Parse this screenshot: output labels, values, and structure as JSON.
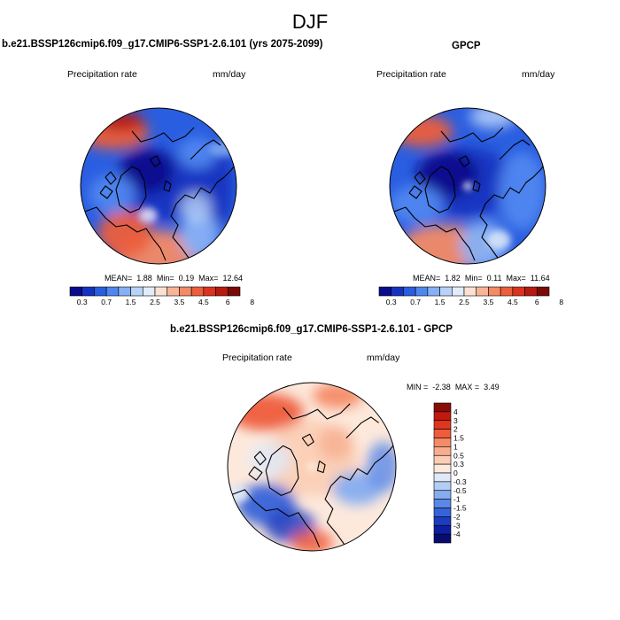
{
  "figure": {
    "title": "DJF"
  },
  "chart_data": [
    {
      "type": "heatmap",
      "projection": "north-polar-stereographic",
      "title": "b.e21.BSSP126cmip6.f09_g17.CMIP6-SSP1-2.6.101 (yrs 2075-2099)",
      "left_label": "Precipitation rate",
      "right_label": "mm/day",
      "stats": {
        "mean_label": "MEAN=",
        "mean": "1.88",
        "min_label": "Min=",
        "min": "0.19",
        "max_label": "Max=",
        "max": "12.64"
      },
      "colorbar": {
        "orientation": "horizontal",
        "tick_labels": [
          "0.3",
          "0.7",
          "1.5",
          "2.5",
          "3.5",
          "4.5",
          "6",
          "8"
        ],
        "colors": [
          "#0a0c8c",
          "#1533c0",
          "#2a5ee0",
          "#4f86f0",
          "#86b0f5",
          "#b8d2f8",
          "#e2ecfa",
          "#fbe1d2",
          "#f8b496",
          "#f48a66",
          "#ec5e3c",
          "#dc3320",
          "#b81a10",
          "#7a0a06"
        ]
      }
    },
    {
      "type": "heatmap",
      "projection": "north-polar-stereographic",
      "title": "GPCP",
      "left_label": "Precipitation rate",
      "right_label": "mm/day",
      "stats": {
        "mean_label": "MEAN=",
        "mean": "1.82",
        "min_label": "Min=",
        "min": "0.11",
        "max_label": "Max=",
        "max": "11.64"
      },
      "colorbar": {
        "orientation": "horizontal",
        "tick_labels": [
          "0.3",
          "0.7",
          "1.5",
          "2.5",
          "3.5",
          "4.5",
          "6",
          "8"
        ],
        "colors": [
          "#0a0c8c",
          "#1533c0",
          "#2a5ee0",
          "#4f86f0",
          "#86b0f5",
          "#b8d2f8",
          "#e2ecfa",
          "#fbe1d2",
          "#f8b496",
          "#f48a66",
          "#ec5e3c",
          "#dc3320",
          "#b81a10",
          "#7a0a06"
        ]
      }
    },
    {
      "type": "heatmap",
      "projection": "north-polar-stereographic",
      "title": "b.e21.BSSP126cmip6.f09_g17.CMIP6-SSP1-2.6.101 - GPCP",
      "left_label": "Precipitation rate",
      "right_label": "mm/day",
      "stats": {
        "min_label": "MIN =",
        "min": "-2.38",
        "max_label": "MAX =",
        "max": "3.49"
      },
      "colorbar": {
        "orientation": "vertical",
        "tick_labels": [
          "4",
          "3",
          "2",
          "1.5",
          "1",
          "0.5",
          "0.3",
          "0",
          "-0.3",
          "-0.5",
          "-1",
          "-1.5",
          "-2",
          "-3",
          "-4"
        ],
        "colors": [
          "#8a0c06",
          "#c01a10",
          "#e0361e",
          "#ee5c3c",
          "#f48a66",
          "#f8ae8e",
          "#fbcdb4",
          "#fde9dc",
          "#dfe9f8",
          "#b4cdf5",
          "#86adf0",
          "#5a88e8",
          "#3563d8",
          "#1c3cc0",
          "#0e1ea0",
          "#060c70"
        ]
      }
    }
  ]
}
